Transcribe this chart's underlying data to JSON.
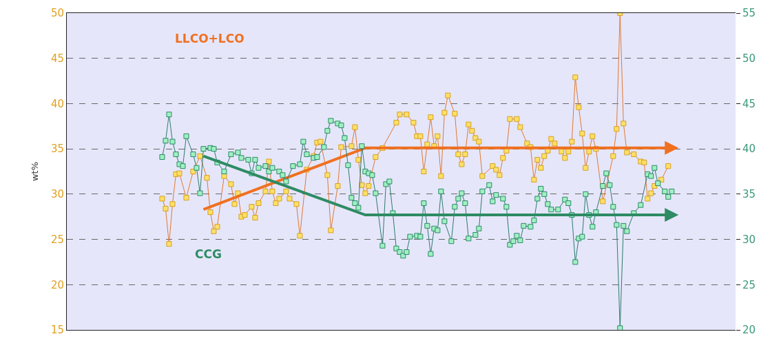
{
  "chart_data": {
    "type": "line",
    "ylabel": "wt%",
    "marker": "square",
    "line_style": "solid",
    "grid": "y",
    "tick_labels": "y",
    "ylim": [
      15,
      50
    ],
    "yticks": [
      15,
      20,
      25,
      30,
      35,
      40,
      45,
      50
    ],
    "y2lim": [
      20,
      55
    ],
    "y2ticks": [
      20,
      25,
      30,
      35,
      40,
      45,
      50,
      55
    ],
    "categories": [
      null,
      null,
      null,
      null,
      null,
      null,
      null,
      null,
      null,
      null,
      null,
      null,
      null,
      null,
      null,
      null,
      null,
      null,
      null,
      null,
      null,
      null,
      null,
      null,
      null,
      null,
      null,
      null,
      null,
      null,
      null,
      null,
      null,
      null,
      null,
      null,
      null,
      null,
      null,
      null,
      null,
      null,
      null,
      null,
      null,
      null,
      null,
      null,
      null,
      null,
      null,
      null,
      null,
      null,
      null,
      null,
      null,
      null,
      null,
      null,
      null,
      null,
      null,
      null,
      null,
      null,
      null,
      null,
      null,
      null,
      null,
      null,
      null,
      null,
      null,
      null,
      null,
      null,
      null,
      null,
      null,
      null,
      null,
      null,
      null,
      null,
      null,
      null,
      null,
      null,
      null,
      null,
      null,
      null,
      null,
      null,
      null,
      null,
      null,
      null,
      null,
      null,
      null,
      null,
      null,
      null,
      null,
      null,
      null,
      null,
      null,
      null,
      null,
      null,
      null,
      null,
      null,
      null,
      null,
      null,
      null,
      null,
      null,
      null,
      null,
      null,
      null,
      null,
      null,
      null,
      null,
      null,
      null,
      null,
      null,
      null,
      null,
      null,
      null,
      null,
      null,
      null,
      null,
      null,
      null,
      null,
      null,
      null,
      null,
      null
    ],
    "series": [
      {
        "color": "#ffe066",
        "values": [
          null,
          29.5,
          28.4,
          24.5,
          28.9,
          32.2,
          32.3,
          null,
          29.6,
          null,
          32.5,
          null,
          34.2,
          null,
          31.8,
          28.0,
          25.9,
          26.4,
          null,
          32.0,
          null,
          31.1,
          28.9,
          30.1,
          27.5,
          27.7,
          null,
          28.6,
          27.4,
          29.0,
          null,
          30.3,
          33.6,
          30.3,
          29.0,
          29.5,
          null,
          30.3,
          29.5,
          null,
          28.9,
          25.4,
          null,
          32.7,
          null,
          34.2,
          35.7,
          35.8,
          null,
          32.1,
          26.0,
          null,
          30.9,
          35.2,
          null,
          null,
          35.3,
          37.4,
          33.8,
          31.0,
          30.1,
          30.9,
          null,
          34.1,
          null,
          35.1,
          null,
          null,
          null,
          37.9,
          38.8,
          null,
          38.8,
          null,
          37.9,
          36.4,
          36.4,
          32.5,
          35.5,
          38.5,
          35.3,
          36.4,
          32.0,
          39.0,
          40.9,
          null,
          38.9,
          34.4,
          33.3,
          34.4,
          37.7,
          37.0,
          36.2,
          35.8,
          32.0,
          null,
          null,
          33.1,
          32.7,
          32.1,
          34.0,
          34.8,
          38.3,
          null,
          38.3,
          37.4,
          null,
          35.6,
          35.2,
          31.6,
          33.8,
          32.9,
          34.2,
          34.8,
          36.1,
          35.6,
          null,
          34.7,
          34.0,
          34.7,
          35.8,
          42.9,
          39.6,
          36.7,
          32.9,
          34.7,
          36.4,
          35.0,
          null,
          29.2,
          null,
          null,
          34.2,
          37.2,
          50,
          37.8,
          34.6,
          null,
          34.4,
          null,
          33.6,
          33.5,
          29.5,
          30.1,
          30.9,
          null,
          31.6,
          null,
          33.1,
          null
        ]
      },
      {
        "color": "#a0f0c0",
        "axis": "y2",
        "values": [
          null,
          39.1,
          40.9,
          43.8,
          40.8,
          39.4,
          38.3,
          38.1,
          41.4,
          null,
          39.4,
          37.9,
          35.1,
          40.0,
          null,
          40.1,
          40.0,
          38.5,
          null,
          37.5,
          null,
          39.4,
          null,
          39.6,
          39.0,
          null,
          38.8,
          37.3,
          38.8,
          37.9,
          null,
          38.1,
          37.5,
          37.9,
          null,
          37.5,
          37.1,
          36.4,
          null,
          38.1,
          null,
          38.3,
          40.8,
          39.4,
          null,
          39.0,
          39.1,
          null,
          40.2,
          42.0,
          43.1,
          null,
          42.8,
          42.6,
          41.2,
          38.2,
          34.6,
          34.0,
          33.5,
          40.3,
          37.5,
          37.3,
          37.1,
          35.1,
          null,
          29.3,
          36.1,
          36.4,
          32.9,
          29.0,
          28.6,
          28.2,
          28.6,
          30.3,
          null,
          30.4,
          30.3,
          34.0,
          31.5,
          28.4,
          31.2,
          31.0,
          35.3,
          32.0,
          null,
          29.8,
          33.6,
          34.5,
          35.1,
          34.0,
          30.1,
          null,
          30.5,
          31.2,
          35.3,
          null,
          36.0,
          34.2,
          34.9,
          null,
          34.5,
          33.6,
          29.4,
          29.8,
          30.4,
          29.9,
          31.5,
          null,
          31.4,
          32.1,
          34.5,
          35.6,
          35.0,
          33.9,
          33.3,
          null,
          33.3,
          null,
          34.4,
          34.0,
          32.7,
          27.5,
          30.1,
          30.3,
          35.0,
          32.7,
          31.4,
          33.0,
          null,
          35.9,
          37.3,
          36.0,
          33.6,
          31.6,
          20.2,
          31.5,
          30.9,
          null,
          32.9,
          null,
          33.8,
          null,
          37.2,
          37.0,
          37.9,
          36.2,
          null,
          35.3,
          34.7,
          35.3
        ]
      },
      {
        "color": "#f07020",
        "marker": "none",
        "values": [
          null,
          null,
          null,
          null,
          null,
          null,
          null,
          null,
          null,
          null,
          null,
          null,
          null,
          28.3,
          null,
          null,
          null,
          null,
          null,
          null,
          null,
          null,
          null,
          null,
          null,
          null,
          null,
          null,
          null,
          null,
          null,
          null,
          null,
          null,
          null,
          null,
          null,
          null,
          null,
          null,
          null,
          null,
          null,
          null,
          null,
          null,
          null,
          null,
          null,
          null,
          null,
          null,
          null,
          null,
          null,
          null,
          null,
          null,
          null,
          null,
          35.1,
          null,
          null,
          null,
          null,
          null,
          null,
          null,
          null,
          null,
          null,
          null,
          null,
          null,
          null,
          null,
          null,
          null,
          null,
          null,
          null,
          null,
          null,
          null,
          null,
          null,
          null,
          null,
          null,
          null,
          null,
          null,
          null,
          null,
          null,
          null,
          null,
          null,
          null,
          null,
          null,
          null,
          null,
          null,
          null,
          null,
          null,
          null,
          null,
          null,
          null,
          null,
          null,
          null,
          null,
          null,
          null,
          null,
          null,
          null,
          null,
          null,
          null,
          null,
          null,
          null,
          null,
          null,
          null,
          null,
          null,
          null,
          null,
          null,
          null,
          null,
          null,
          null,
          null,
          null,
          null,
          null,
          null,
          null,
          null,
          null,
          null,
          null,
          null,
          35.1
        ]
      },
      {
        "color": "#2e8b64",
        "marker": "none",
        "axis": "y2",
        "values": [
          null,
          null,
          null,
          null,
          null,
          null,
          null,
          null,
          null,
          null,
          null,
          null,
          null,
          39.2,
          null,
          null,
          null,
          null,
          null,
          null,
          null,
          null,
          null,
          null,
          null,
          null,
          null,
          null,
          null,
          null,
          null,
          null,
          null,
          null,
          null,
          null,
          null,
          null,
          null,
          null,
          null,
          null,
          null,
          null,
          null,
          null,
          null,
          null,
          null,
          null,
          null,
          null,
          null,
          null,
          null,
          null,
          null,
          null,
          null,
          null,
          32.7,
          null,
          null,
          null,
          null,
          null,
          null,
          null,
          null,
          null,
          null,
          null,
          null,
          null,
          null,
          null,
          null,
          null,
          null,
          null,
          null,
          null,
          null,
          null,
          null,
          null,
          null,
          null,
          null,
          null,
          null,
          null,
          null,
          null,
          null,
          null,
          null,
          null,
          null,
          null,
          null,
          null,
          null,
          null,
          null,
          null,
          null,
          null,
          null,
          null,
          null,
          null,
          null,
          null,
          null,
          null,
          null,
          null,
          null,
          null,
          null,
          null,
          null,
          null,
          null,
          null,
          null,
          null,
          null,
          null,
          null,
          null,
          null,
          null,
          null,
          null,
          null,
          null,
          null,
          null,
          null,
          null,
          null,
          null,
          null,
          null,
          null,
          null,
          null,
          32.7
        ]
      }
    ],
    "annotations": [
      "LLCO+LCO",
      "CCG"
    ]
  }
}
